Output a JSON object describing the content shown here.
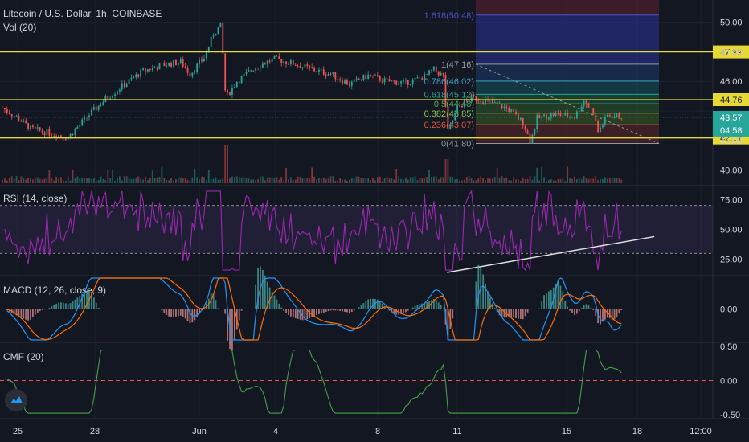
{
  "header": {
    "symbol": "Litecoin / U.S. Dollar, 1h, COINBASE",
    "vol_label": "Vol (20)"
  },
  "panes": {
    "rsi_label": "RSI (14, close)",
    "macd_label": "MACD (12, 26, close, 9)",
    "cmf_label": "CMF (20)"
  },
  "chart_data": [
    {
      "id": "price",
      "type": "candlestick",
      "title": "Litecoin / U.S. Dollar, 1h, COINBASE",
      "ylim": [
        39.0,
        51.5
      ],
      "y_ticks": [
        "50.00",
        "48.00",
        "46.00",
        "42.00",
        "40.00"
      ],
      "x_ticks": [
        "25",
        "28",
        "Jun",
        "4",
        "8",
        "11",
        "15",
        "18",
        "12:00"
      ],
      "close_path": [
        {
          "x": 0.0,
          "y": 44.2
        },
        {
          "x": 1.5,
          "y": 43.6
        },
        {
          "x": 3.0,
          "y": 42.8
        },
        {
          "x": 5.0,
          "y": 42.5
        },
        {
          "x": 7.0,
          "y": 42.2
        },
        {
          "x": 9.0,
          "y": 43.6
        },
        {
          "x": 11.0,
          "y": 44.8
        },
        {
          "x": 13.0,
          "y": 45.8
        },
        {
          "x": 15.0,
          "y": 46.7
        },
        {
          "x": 17.0,
          "y": 47.1
        },
        {
          "x": 19.0,
          "y": 47.3
        },
        {
          "x": 20.0,
          "y": 46.5
        },
        {
          "x": 21.5,
          "y": 47.6
        },
        {
          "x": 22.5,
          "y": 49.2
        },
        {
          "x": 23.3,
          "y": 49.8
        },
        {
          "x": 23.8,
          "y": 44.9
        },
        {
          "x": 25.0,
          "y": 46.0
        },
        {
          "x": 27.0,
          "y": 47.0
        },
        {
          "x": 29.0,
          "y": 47.5
        },
        {
          "x": 31.0,
          "y": 47.2
        },
        {
          "x": 33.0,
          "y": 46.8
        },
        {
          "x": 35.0,
          "y": 46.5
        },
        {
          "x": 37.0,
          "y": 45.8
        },
        {
          "x": 39.0,
          "y": 46.4
        },
        {
          "x": 41.0,
          "y": 46.0
        },
        {
          "x": 43.0,
          "y": 45.9
        },
        {
          "x": 45.0,
          "y": 46.3
        },
        {
          "x": 46.0,
          "y": 46.8
        },
        {
          "x": 47.1,
          "y": 46.3
        },
        {
          "x": 47.4,
          "y": 42.4
        },
        {
          "x": 48.5,
          "y": 44.2
        },
        {
          "x": 50.0,
          "y": 44.9
        },
        {
          "x": 52.0,
          "y": 44.6
        },
        {
          "x": 54.0,
          "y": 44.1
        },
        {
          "x": 55.5,
          "y": 43.2
        },
        {
          "x": 56.3,
          "y": 41.9
        },
        {
          "x": 57.0,
          "y": 43.5
        },
        {
          "x": 59.0,
          "y": 43.8
        },
        {
          "x": 61.0,
          "y": 43.6
        },
        {
          "x": 62.0,
          "y": 44.7
        },
        {
          "x": 63.0,
          "y": 43.9
        },
        {
          "x": 63.5,
          "y": 42.6
        },
        {
          "x": 64.5,
          "y": 43.7
        },
        {
          "x": 66.0,
          "y": 43.6
        }
      ],
      "horizontal_levels": [
        {
          "label": "47.99",
          "y": 47.99
        },
        {
          "label": "44.76",
          "y": 44.76
        },
        {
          "label": "42.17",
          "y": 42.17
        }
      ],
      "current_price": {
        "label": "43.57",
        "y": 43.57,
        "countdown": "04:58"
      },
      "fibonacci": [
        {
          "label": "1.618(50.48)",
          "y": 50.48,
          "color": "#4a54c8"
        },
        {
          "label": "1(47.16)",
          "y": 47.16,
          "color": "#9598a1"
        },
        {
          "label": "0.786(46.02)",
          "y": 46.02,
          "color": "#3aa0c4"
        },
        {
          "label": "0.618(45.12)",
          "y": 45.12,
          "color": "#26a69a"
        },
        {
          "label": "0.5(44.48)",
          "y": 44.48,
          "color": "#4caf50"
        },
        {
          "label": "0.382(43.85)",
          "y": 43.85,
          "color": "#8bc34a"
        },
        {
          "label": "0.236(43.07)",
          "y": 43.07,
          "color": "#e0563f"
        },
        {
          "label": "0(41.80)",
          "y": 41.8,
          "color": "#9598a1"
        }
      ]
    },
    {
      "id": "volume",
      "type": "bar",
      "title": "Vol (20)"
    },
    {
      "id": "rsi",
      "type": "line",
      "title": "RSI (14, close)",
      "ylim": [
        12,
        86
      ],
      "y_ticks": [
        "75.00",
        "50.00",
        "25.00"
      ],
      "band": [
        30,
        70
      ],
      "trendline": [
        {
          "x": 47.4,
          "y": 14
        },
        {
          "x": 69.5,
          "y": 44
        }
      ]
    },
    {
      "id": "macd",
      "type": "line",
      "title": "MACD (12, 26, close, 9)",
      "ylim": [
        -1.0,
        1.0
      ],
      "y_ticks": [
        "0.00"
      ]
    },
    {
      "id": "cmf",
      "type": "line",
      "title": "CMF (20)",
      "ylim": [
        -0.55,
        0.55
      ],
      "y_ticks": [
        "0.50",
        "0.00",
        "-0.50"
      ]
    }
  ],
  "colors": {
    "background": "#131722",
    "grid": "#1e2230",
    "axis_text": "#d1d4dc",
    "up": "#26a69a",
    "down": "#ef5350",
    "level": "#e6d934",
    "rsi": "#9c27b0",
    "macd": "#2196f3",
    "signal": "#ff6d00",
    "cmf": "#43a047",
    "zero_line": "#ef5350",
    "trendline": "#e0e0e0",
    "price_label": "#26a69a"
  }
}
